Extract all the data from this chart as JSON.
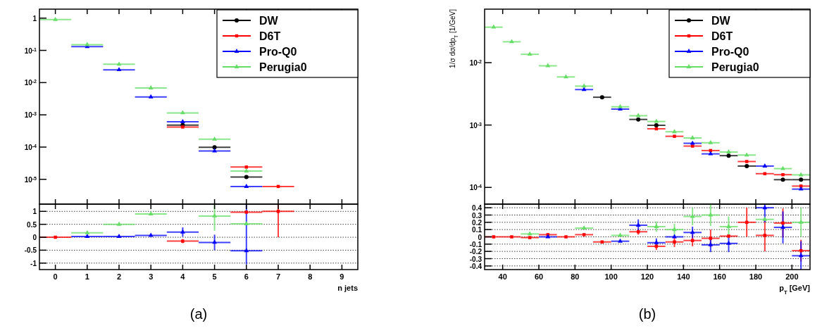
{
  "chart_data": [
    {
      "type": "scatter",
      "log": true,
      "xlim": [
        -0.5,
        9.5
      ],
      "xticks": [
        0,
        1,
        2,
        3,
        4,
        5,
        6,
        7,
        8,
        9
      ],
      "ylim": [
        1.7e-06,
        1.9
      ],
      "yticks": [
        {
          "value": 1,
          "label": "1"
        },
        {
          "value": 0.1,
          "label": "10$^{-1}$"
        },
        {
          "value": 0.01,
          "label": "10$^{-2}$"
        },
        {
          "value": 0.001,
          "label": "10$^{-3}$"
        },
        {
          "value": 0.0001,
          "label": "10$^{-4}$"
        },
        {
          "value": 1e-05,
          "label": "10$^{-5}$"
        }
      ],
      "tick_labels": "y",
      "legend": "top right",
      "x": [
        0,
        1,
        2,
        3,
        4,
        5,
        6,
        7
      ],
      "series": [
        {
          "name": "DW",
          "color": "#000000",
          "marker": "circle",
          "values": [
            null,
            null,
            null,
            null,
            0.00048,
            9.8e-05,
            1.18e-05,
            null
          ],
          "xerrors": [
            null,
            null,
            null,
            null,
            0.5,
            0.5,
            0.5,
            null
          ]
        },
        {
          "name": "D6T",
          "color": "#ff0000",
          "marker": "square",
          "values": [
            null,
            null,
            null,
            null,
            0.00042,
            null,
            2.4e-05,
            6e-06
          ],
          "xerrors": [
            null,
            null,
            null,
            null,
            0.5,
            null,
            0.5,
            0.5
          ]
        },
        {
          "name": "Pro-Q0",
          "color": "#0000ff",
          "marker": "triangle",
          "values": [
            null,
            0.13,
            0.025,
            0.0036,
            0.00061,
            7.6e-05,
            6e-06,
            null
          ],
          "xerrors": [
            null,
            0.5,
            0.5,
            0.5,
            0.5,
            0.5,
            0.5,
            null
          ]
        },
        {
          "name": "Perugia0",
          "color": "#66dd66",
          "marker": "triangle",
          "values": [
            0.9,
            0.15,
            0.037,
            0.0068,
            0.00115,
            0.000175,
            1.8e-05,
            null
          ],
          "xerrors": [
            0.5,
            0.5,
            0.5,
            0.5,
            0.5,
            0.5,
            0.5,
            null
          ]
        }
      ]
    },
    {
      "type": "scatter",
      "xlim": [
        -0.5,
        9.5
      ],
      "xticks": [
        0,
        1,
        2,
        3,
        4,
        5,
        6,
        7,
        8,
        9
      ],
      "ylim": [
        -1.25,
        1.28
      ],
      "yticks": [
        -1,
        -0.5,
        0,
        0.5,
        1
      ],
      "grid": "y",
      "xlabel": "n jets",
      "annotations": [
        "(a)"
      ],
      "x": [
        0,
        1,
        2,
        3,
        4,
        5,
        6,
        7
      ],
      "series": [
        {
          "color": "#ff0000",
          "marker": "square",
          "values": [
            0,
            null,
            null,
            null,
            -0.15,
            null,
            0.97,
            1.0
          ],
          "errors": [
            null,
            null,
            null,
            null,
            0.08,
            null,
            null,
            [
              0,
              1.28
            ]
          ],
          "xerrors": [
            0.5,
            null,
            null,
            null,
            0.5,
            null,
            0.5,
            0.5
          ]
        },
        {
          "color": "#0000ff",
          "marker": "triangle",
          "values": [
            null,
            0.03,
            0.03,
            0.07,
            0.2,
            -0.2,
            -0.52,
            null
          ],
          "errors": [
            null,
            null,
            null,
            null,
            0.18,
            0.3,
            [
              -1.05,
              1.28
            ],
            null
          ],
          "xerrors": [
            null,
            0.5,
            0.5,
            0.5,
            0.5,
            0.5,
            0.5,
            null
          ]
        },
        {
          "color": "#66dd66",
          "marker": "triangle",
          "values": [
            null,
            0.17,
            0.5,
            0.9,
            null,
            0.82,
            0.52,
            null
          ],
          "errors": [
            null,
            null,
            null,
            null,
            null,
            [
              0.25,
              1.28
            ],
            null,
            null
          ],
          "xerrors": [
            null,
            0.5,
            0.5,
            0.5,
            null,
            0.5,
            0.5,
            null
          ]
        }
      ]
    },
    {
      "type": "scatter",
      "log": true,
      "xlim": [
        30,
        210
      ],
      "xticks": [
        40,
        60,
        80,
        100,
        120,
        140,
        160,
        180,
        200
      ],
      "ylim": [
        5.4e-05,
        0.072
      ],
      "yticks": [
        {
          "value": 0.01,
          "label": "10$^{-2}$"
        },
        {
          "value": 0.001,
          "label": "10$^{-3}$"
        },
        {
          "value": 0.0001,
          "label": "10$^{-4}$"
        }
      ],
      "tick_labels": "y",
      "ylabel": "1/σ dσ/dp$_{T}$ [1/GeV]",
      "legend": "top right",
      "x": [
        35,
        45,
        55,
        65,
        75,
        85,
        95,
        105,
        115,
        125,
        135,
        145,
        155,
        165,
        175,
        185,
        195,
        205
      ],
      "series": [
        {
          "name": "DW",
          "color": "#000000",
          "marker": "circle",
          "values": [
            null,
            null,
            null,
            null,
            null,
            null,
            0.00279,
            null,
            0.00123,
            0.00099,
            null,
            null,
            null,
            0.000323,
            0.00022,
            null,
            0.000133,
            0.000133
          ],
          "xerrors": [
            null,
            null,
            null,
            null,
            null,
            null,
            5,
            null,
            5,
            5,
            null,
            null,
            null,
            5,
            5,
            null,
            5,
            5
          ]
        },
        {
          "name": "D6T",
          "color": "#ff0000",
          "marker": "square",
          "values": [
            null,
            null,
            null,
            null,
            null,
            null,
            null,
            null,
            null,
            0.00087,
            0.00066,
            0.00046,
            0.00039,
            null,
            0.00026,
            0.000166,
            0.00016,
            0.000105
          ],
          "xerrors": [
            null,
            null,
            null,
            null,
            null,
            null,
            null,
            null,
            null,
            5,
            5,
            5,
            5,
            null,
            5,
            5,
            5,
            5
          ]
        },
        {
          "name": "Pro-Q0",
          "color": "#0000ff",
          "marker": "triangle",
          "values": [
            null,
            null,
            null,
            null,
            null,
            0.0037,
            null,
            0.0018,
            null,
            null,
            null,
            0.00051,
            0.000345,
            null,
            null,
            0.00022,
            null,
            9.4e-05
          ],
          "xerrors": [
            null,
            null,
            null,
            null,
            null,
            5,
            null,
            5,
            null,
            null,
            null,
            5,
            5,
            null,
            null,
            5,
            null,
            5
          ]
        },
        {
          "name": "Perugia0",
          "color": "#66dd66",
          "marker": "triangle",
          "values": [
            0.037,
            0.0216,
            0.0136,
            0.0089,
            0.0059,
            0.0042,
            null,
            0.00196,
            0.00141,
            0.00114,
            0.00078,
            0.00062,
            0.00052,
            0.000369,
            0.00033,
            null,
            0.0002,
            0.000159
          ],
          "xerrors": [
            5,
            5,
            5,
            5,
            5,
            5,
            null,
            5,
            5,
            5,
            5,
            5,
            5,
            5,
            5,
            null,
            5,
            5
          ]
        }
      ]
    },
    {
      "type": "scatter",
      "xlim": [
        30,
        210
      ],
      "xticks": [
        40,
        60,
        80,
        100,
        120,
        140,
        160,
        180,
        200
      ],
      "ylim": [
        -0.45,
        0.45
      ],
      "yticks": [
        -0.4,
        -0.3,
        -0.2,
        -0.1,
        0,
        0.1,
        0.2,
        0.3,
        0.4
      ],
      "grid": "y",
      "xlabel": "p$_{T}$ [GeV]",
      "annotations": [
        "(b)"
      ],
      "x": [
        35,
        45,
        55,
        65,
        75,
        85,
        95,
        105,
        115,
        125,
        135,
        145,
        155,
        165,
        175,
        185,
        195,
        205
      ],
      "series": [
        {
          "color": "#ff0000",
          "marker": "square",
          "values": [
            0,
            0,
            -0.01,
            0.03,
            0,
            0.03,
            -0.07,
            null,
            0.07,
            -0.13,
            -0.07,
            -0.05,
            -0.02,
            0.01,
            0.2,
            0.02,
            0.19,
            -0.19
          ],
          "errors": [
            null,
            null,
            null,
            null,
            null,
            null,
            null,
            null,
            0.04,
            0.05,
            0.07,
            0.08,
            0.12,
            null,
            0.2,
            0.22,
            0.2,
            0.15
          ],
          "xerrors": [
            5,
            5,
            5,
            5,
            5,
            5,
            5,
            null,
            5,
            5,
            5,
            5,
            5,
            5,
            5,
            5,
            5,
            5
          ]
        },
        {
          "color": "#0000ff",
          "marker": "triangle",
          "values": [
            null,
            null,
            null,
            0,
            null,
            null,
            null,
            -0.06,
            0.16,
            -0.08,
            0,
            0.06,
            -0.11,
            -0.09,
            null,
            0.4,
            0.13,
            -0.26
          ],
          "errors": [
            null,
            null,
            null,
            null,
            null,
            null,
            null,
            null,
            0.08,
            0.06,
            null,
            0.08,
            0.1,
            0.12,
            null,
            [
              0.2,
              0.45
            ],
            0.22,
            [
              -0.45,
              -0.06
            ]
          ],
          "xerrors": [
            null,
            null,
            null,
            5,
            null,
            null,
            null,
            5,
            5,
            5,
            5,
            5,
            5,
            5,
            null,
            5,
            5,
            5
          ]
        },
        {
          "color": "#66dd66",
          "marker": "triangle",
          "values": [
            null,
            null,
            0.04,
            null,
            null,
            0.12,
            null,
            0.02,
            null,
            0.14,
            0.1,
            0.28,
            0.3,
            0.14,
            null,
            0.24,
            null,
            0.2
          ],
          "errors": [
            null,
            null,
            null,
            null,
            null,
            null,
            null,
            null,
            null,
            0.07,
            0.08,
            0.12,
            0.15,
            0.14,
            null,
            null,
            null,
            0.2
          ],
          "xerrors": [
            null,
            null,
            5,
            null,
            null,
            5,
            null,
            5,
            null,
            5,
            5,
            5,
            5,
            5,
            null,
            5,
            null,
            5
          ]
        }
      ]
    }
  ]
}
